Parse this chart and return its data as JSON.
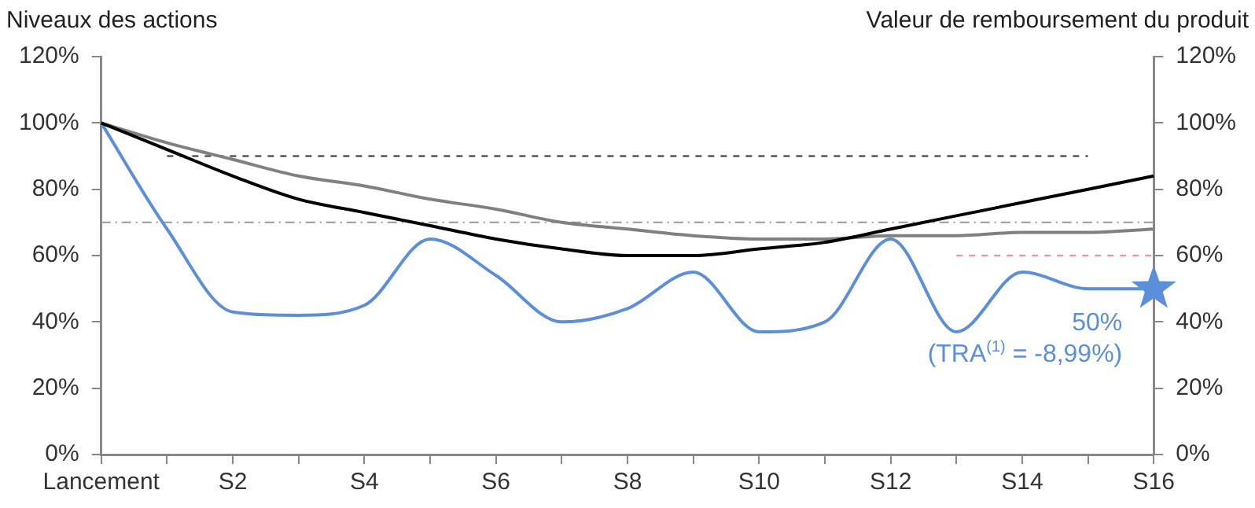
{
  "chart_data": {
    "type": "line",
    "ylabel": "Niveaux des actions",
    "y2label": "Valeur de remboursement du produit",
    "categories": [
      "Lancement",
      null,
      "S2",
      null,
      "S4",
      null,
      "S6",
      null,
      "S8",
      null,
      "S10",
      null,
      "S12",
      null,
      "S14",
      null,
      "S16"
    ],
    "series": [
      {
        "color": "#000000",
        "values": [
          100,
          92,
          84,
          77,
          73,
          69,
          65,
          62,
          60,
          60,
          62,
          64,
          68,
          72,
          76,
          80,
          84
        ]
      },
      {
        "color": "#808080",
        "values": [
          100,
          94,
          89,
          84,
          81,
          77,
          74,
          70,
          68,
          66,
          65,
          65,
          66,
          66,
          67,
          67,
          68
        ]
      },
      {
        "color": "#5b8fd9",
        "values": [
          100,
          68,
          43,
          42,
          45,
          65,
          54,
          40,
          44,
          55,
          37,
          40,
          65,
          37,
          55,
          50,
          50
        ]
      },
      {
        "color": "#555555",
        "line_style": "dashed",
        "values": [
          null,
          90,
          90,
          90,
          90,
          90,
          90,
          90,
          90,
          90,
          90,
          90,
          90,
          90,
          90,
          90,
          null
        ]
      },
      {
        "color": "#e89a9a",
        "line_style": "dashed",
        "values": [
          null,
          null,
          null,
          null,
          null,
          null,
          null,
          null,
          null,
          null,
          null,
          null,
          null,
          60,
          60,
          60,
          60
        ]
      },
      {
        "type": "scatter",
        "color": "#5b8fd9",
        "marker": "star",
        "x": [
          "S16"
        ],
        "values": [
          50
        ]
      }
    ],
    "ref_lines": [
      {
        "axis": "y",
        "value": 70,
        "color": "#999999",
        "line_style": "dashed"
      }
    ],
    "annotations": [
      {
        "text": "50%",
        "x": "S16",
        "y": 50
      },
      {
        "text": "(TRA$^{(1)}$ = -8,99%)",
        "x": "S16",
        "y": 50
      }
    ],
    "ylim": [
      0,
      120
    ],
    "yticks": [
      {
        "value": 0,
        "label": "0%"
      },
      {
        "value": 20,
        "label": "20%"
      },
      {
        "value": 40,
        "label": "40%"
      },
      {
        "value": 60,
        "label": "60%"
      },
      {
        "value": 80,
        "label": "80%"
      },
      {
        "value": 100,
        "label": "100%"
      },
      {
        "value": 120,
        "label": "120%"
      }
    ],
    "y2lim": [
      0,
      120
    ],
    "y2ticks": [
      {
        "value": 0,
        "label": "0%"
      },
      {
        "value": 20,
        "label": "20%"
      },
      {
        "value": 40,
        "label": "40%"
      },
      {
        "value": 60,
        "label": "60%"
      },
      {
        "value": 80,
        "label": "80%"
      },
      {
        "value": 100,
        "label": "100%"
      },
      {
        "value": 120,
        "label": "120%"
      }
    ],
    "grid": false,
    "legend": false,
    "marker": "none",
    "line_style": "solid"
  }
}
